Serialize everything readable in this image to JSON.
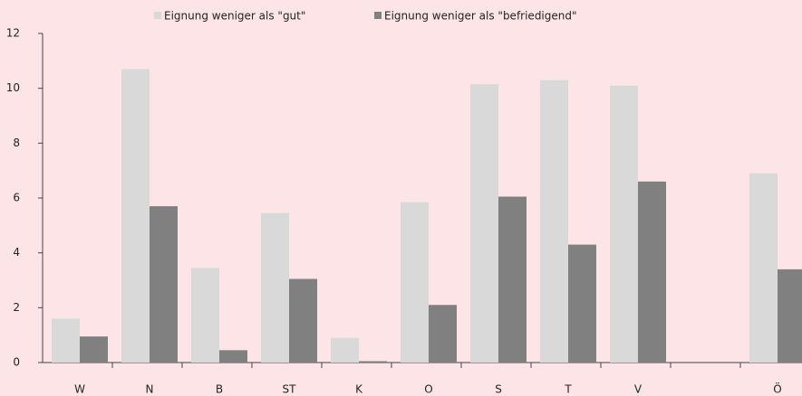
{
  "chart_data": {
    "type": "bar",
    "categories": [
      "W",
      "N",
      "B",
      "ST",
      "K",
      "O",
      "S",
      "T",
      "V",
      null,
      "Ö"
    ],
    "series": [
      {
        "name": "Eignung weniger als \"gut\"",
        "color": "#d9d9d9",
        "values": [
          1.6,
          10.7,
          3.45,
          5.45,
          0.9,
          5.85,
          10.15,
          10.3,
          10.1,
          null,
          6.9
        ]
      },
      {
        "name": "Eignung weniger als \"befriedigend\"",
        "color": "#808080",
        "values": [
          0.95,
          5.7,
          0.45,
          3.05,
          0.05,
          2.1,
          6.05,
          4.3,
          6.6,
          null,
          3.4
        ]
      }
    ],
    "ylim": [
      0,
      12
    ],
    "yticks": [
      0,
      2,
      4,
      6,
      8,
      10,
      12
    ],
    "legend": "top",
    "grid": false
  }
}
